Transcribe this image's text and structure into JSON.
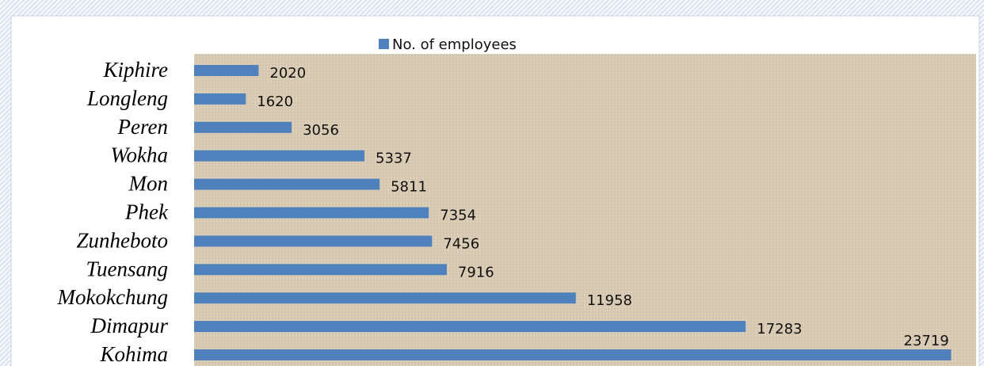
{
  "chart_data": {
    "type": "barh",
    "legend": "No. of employees",
    "categories": [
      "Kiphire",
      "Longleng",
      "Peren",
      "Wokha",
      "Mon",
      "Phek",
      "Zunheboto",
      "Tuensang",
      "Mokokchung",
      "Dimapur",
      "Kohima"
    ],
    "values": [
      2020,
      1620,
      3056,
      5337,
      5811,
      7354,
      7456,
      7916,
      11958,
      17283,
      23719
    ],
    "color": "#4f81bd",
    "xlim": [
      0,
      24500
    ]
  }
}
